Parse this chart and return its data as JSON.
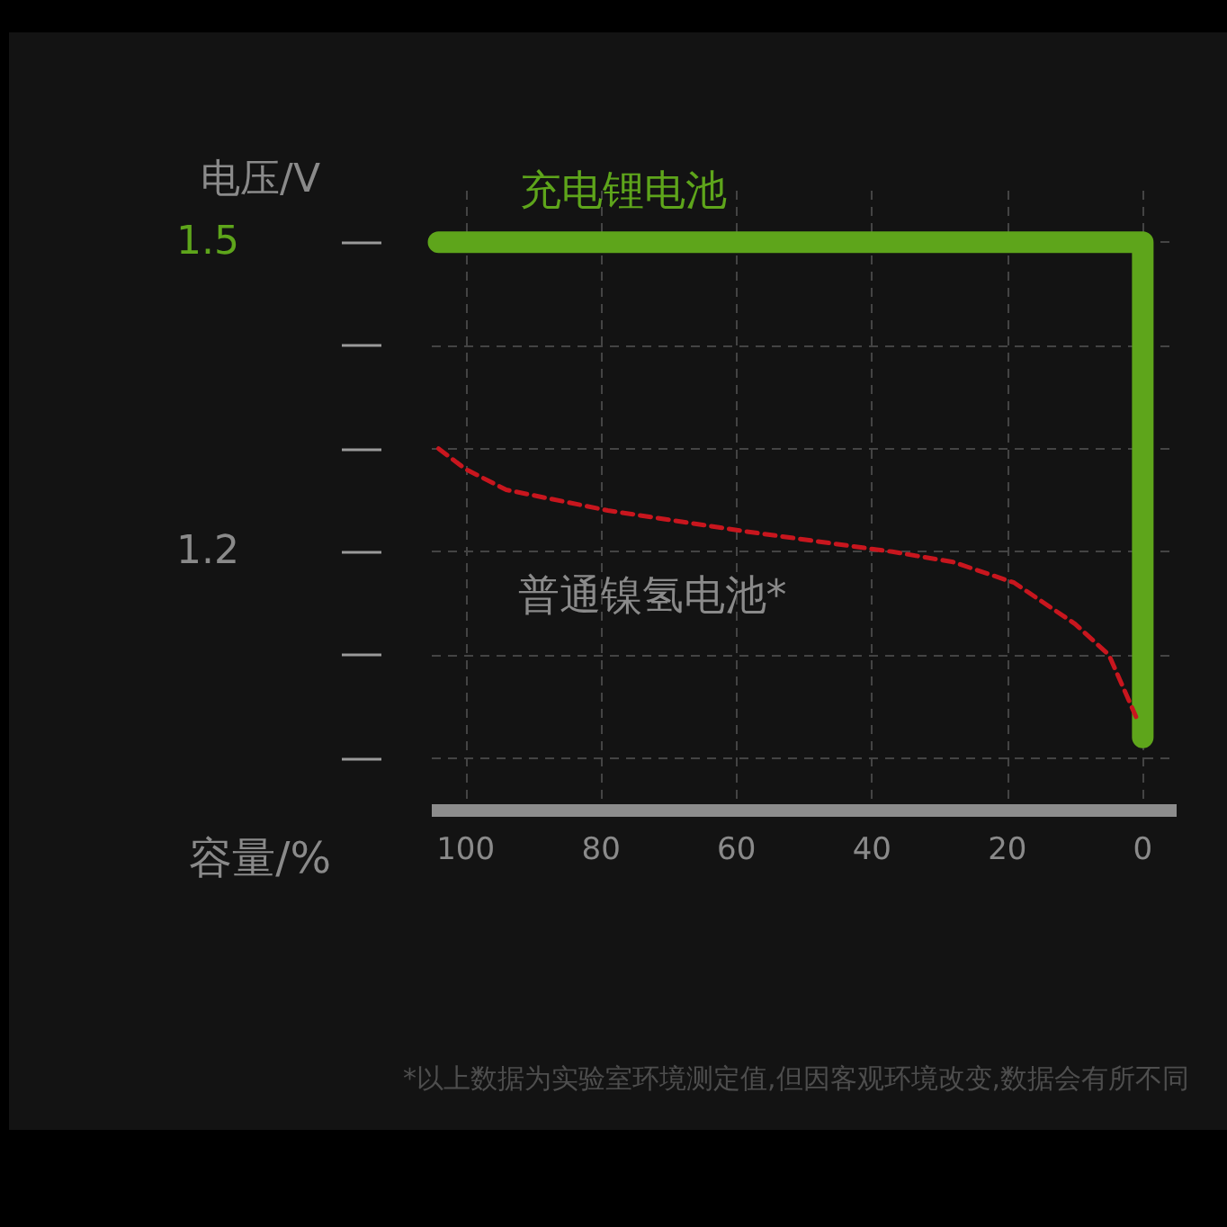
{
  "chart_data": {
    "type": "line",
    "xlabel": "容量/%",
    "ylabel": "电压/V",
    "xlim": [
      105,
      -5
    ],
    "xticks": [
      100,
      80,
      60,
      40,
      20,
      0
    ],
    "ylim": [
      0.95,
      1.55
    ],
    "yticks": [
      {
        "value": 1.0,
        "label": null
      },
      {
        "value": 1.1,
        "label": null
      },
      1.2,
      {
        "value": 1.3,
        "label": null
      },
      {
        "value": 1.4,
        "label": null
      },
      1.5
    ],
    "grid": true,
    "series": [
      {
        "name": "充电锂电池",
        "color": "#5ea51b",
        "line_style": "solid",
        "x": [
          104,
          0,
          0
        ],
        "values": [
          1.5,
          1.5,
          1.02
        ]
      },
      {
        "name": "普通镍氢电池*",
        "color": "#c8161e",
        "line_style": "dashed",
        "x": [
          104,
          102,
          100,
          94,
          79,
          59,
          37,
          28,
          19,
          10,
          5,
          1
        ],
        "values": [
          1.3,
          1.29,
          1.28,
          1.26,
          1.24,
          1.22,
          1.2,
          1.19,
          1.17,
          1.13,
          1.1,
          1.04
        ]
      }
    ],
    "annotations": [
      "*以上数据为实验室环境测定值,但因客观环境改变,数据会有所不同"
    ]
  }
}
